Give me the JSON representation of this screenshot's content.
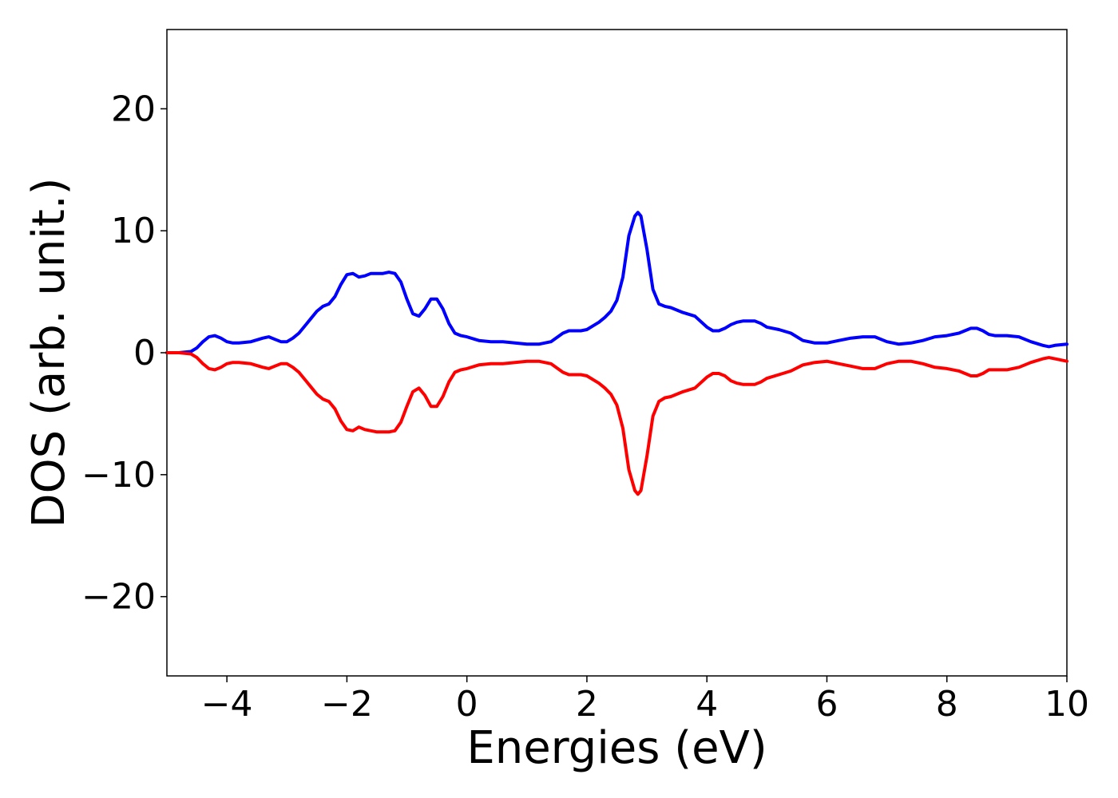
{
  "chart_data": {
    "type": "line",
    "title": "",
    "xlabel": "Energies (eV)",
    "ylabel": "DOS (arb. unit.)",
    "xlim": [
      -5,
      10
    ],
    "ylim": [
      -26.5,
      26.5
    ],
    "grid": false,
    "legend": "none",
    "x_ticks": [
      -4,
      -2,
      0,
      2,
      4,
      6,
      8,
      10
    ],
    "x_tick_labels": [
      "−4",
      "−2",
      "0",
      "2",
      "4",
      "6",
      "8",
      "10"
    ],
    "y_ticks": [
      20,
      10,
      0,
      -10,
      -20
    ],
    "y_tick_labels": [
      "20",
      "10",
      "0",
      "−10",
      "−20"
    ],
    "series": [
      {
        "color": "#0000ff",
        "x": [
          -5.0,
          -4.8,
          -4.6,
          -4.5,
          -4.4,
          -4.3,
          -4.2,
          -4.1,
          -4.0,
          -3.9,
          -3.8,
          -3.6,
          -3.4,
          -3.3,
          -3.2,
          -3.1,
          -3.0,
          -2.9,
          -2.8,
          -2.7,
          -2.6,
          -2.5,
          -2.4,
          -2.3,
          -2.2,
          -2.1,
          -2.0,
          -1.9,
          -1.8,
          -1.7,
          -1.6,
          -1.5,
          -1.4,
          -1.3,
          -1.2,
          -1.1,
          -1.0,
          -0.9,
          -0.8,
          -0.7,
          -0.6,
          -0.5,
          -0.4,
          -0.3,
          -0.2,
          -0.1,
          0.0,
          0.2,
          0.4,
          0.6,
          0.8,
          1.0,
          1.2,
          1.4,
          1.6,
          1.7,
          1.8,
          1.9,
          2.0,
          2.1,
          2.2,
          2.3,
          2.4,
          2.5,
          2.6,
          2.7,
          2.8,
          2.85,
          2.9,
          3.0,
          3.1,
          3.2,
          3.3,
          3.4,
          3.6,
          3.8,
          4.0,
          4.1,
          4.2,
          4.3,
          4.4,
          4.5,
          4.6,
          4.7,
          4.8,
          4.9,
          5.0,
          5.2,
          5.4,
          5.6,
          5.8,
          6.0,
          6.2,
          6.4,
          6.6,
          6.8,
          7.0,
          7.2,
          7.4,
          7.6,
          7.8,
          8.0,
          8.2,
          8.4,
          8.5,
          8.6,
          8.7,
          8.8,
          9.0,
          9.2,
          9.4,
          9.6,
          9.7,
          9.8,
          10.0
        ],
        "y": [
          0.0,
          0.0,
          0.1,
          0.4,
          0.9,
          1.3,
          1.4,
          1.2,
          0.9,
          0.8,
          0.8,
          0.9,
          1.2,
          1.3,
          1.1,
          0.9,
          0.9,
          1.2,
          1.6,
          2.2,
          2.8,
          3.4,
          3.8,
          4.0,
          4.6,
          5.6,
          6.4,
          6.5,
          6.2,
          6.3,
          6.5,
          6.5,
          6.5,
          6.6,
          6.5,
          5.8,
          4.4,
          3.2,
          3.0,
          3.6,
          4.4,
          4.4,
          3.6,
          2.4,
          1.6,
          1.4,
          1.3,
          1.0,
          0.9,
          0.9,
          0.8,
          0.7,
          0.7,
          0.9,
          1.6,
          1.8,
          1.8,
          1.8,
          1.9,
          2.2,
          2.5,
          2.9,
          3.4,
          4.3,
          6.2,
          9.6,
          11.2,
          11.5,
          11.2,
          8.5,
          5.2,
          4.0,
          3.8,
          3.7,
          3.3,
          3.0,
          2.1,
          1.8,
          1.8,
          2.0,
          2.3,
          2.5,
          2.6,
          2.6,
          2.6,
          2.4,
          2.1,
          1.9,
          1.6,
          1.0,
          0.8,
          0.8,
          1.0,
          1.2,
          1.3,
          1.3,
          0.9,
          0.7,
          0.8,
          1.0,
          1.3,
          1.4,
          1.6,
          2.0,
          2.0,
          1.8,
          1.5,
          1.4,
          1.4,
          1.3,
          0.9,
          0.6,
          0.5,
          0.6,
          0.7
        ]
      },
      {
        "color": "#ff0000",
        "x": [
          -5.0,
          -4.8,
          -4.6,
          -4.5,
          -4.4,
          -4.3,
          -4.2,
          -4.1,
          -4.0,
          -3.9,
          -3.8,
          -3.6,
          -3.4,
          -3.3,
          -3.2,
          -3.1,
          -3.0,
          -2.9,
          -2.8,
          -2.7,
          -2.6,
          -2.5,
          -2.4,
          -2.3,
          -2.2,
          -2.1,
          -2.0,
          -1.9,
          -1.8,
          -1.7,
          -1.6,
          -1.5,
          -1.4,
          -1.3,
          -1.2,
          -1.1,
          -1.0,
          -0.9,
          -0.8,
          -0.7,
          -0.6,
          -0.5,
          -0.4,
          -0.3,
          -0.2,
          -0.1,
          0.0,
          0.2,
          0.4,
          0.6,
          0.8,
          1.0,
          1.2,
          1.4,
          1.6,
          1.7,
          1.8,
          1.9,
          2.0,
          2.1,
          2.2,
          2.3,
          2.4,
          2.5,
          2.6,
          2.7,
          2.8,
          2.85,
          2.9,
          3.0,
          3.1,
          3.2,
          3.3,
          3.4,
          3.6,
          3.8,
          4.0,
          4.1,
          4.2,
          4.3,
          4.4,
          4.5,
          4.6,
          4.7,
          4.8,
          4.9,
          5.0,
          5.2,
          5.4,
          5.6,
          5.8,
          6.0,
          6.2,
          6.4,
          6.6,
          6.8,
          7.0,
          7.2,
          7.4,
          7.6,
          7.8,
          8.0,
          8.2,
          8.4,
          8.5,
          8.6,
          8.7,
          8.8,
          9.0,
          9.2,
          9.4,
          9.6,
          9.7,
          9.8,
          10.0
        ],
        "y": [
          0.0,
          0.0,
          -0.1,
          -0.4,
          -0.9,
          -1.3,
          -1.4,
          -1.2,
          -0.9,
          -0.8,
          -0.8,
          -0.9,
          -1.2,
          -1.3,
          -1.1,
          -0.9,
          -0.9,
          -1.2,
          -1.6,
          -2.2,
          -2.8,
          -3.4,
          -3.8,
          -4.0,
          -4.6,
          -5.6,
          -6.3,
          -6.4,
          -6.1,
          -6.3,
          -6.4,
          -6.5,
          -6.5,
          -6.5,
          -6.4,
          -5.7,
          -4.4,
          -3.2,
          -2.9,
          -3.5,
          -4.4,
          -4.4,
          -3.6,
          -2.4,
          -1.6,
          -1.4,
          -1.3,
          -1.0,
          -0.9,
          -0.9,
          -0.8,
          -0.7,
          -0.7,
          -0.9,
          -1.6,
          -1.8,
          -1.8,
          -1.8,
          -1.9,
          -2.2,
          -2.5,
          -2.9,
          -3.4,
          -4.3,
          -6.2,
          -9.6,
          -11.3,
          -11.6,
          -11.3,
          -8.5,
          -5.2,
          -4.0,
          -3.7,
          -3.6,
          -3.2,
          -2.9,
          -2.0,
          -1.7,
          -1.7,
          -1.9,
          -2.3,
          -2.5,
          -2.6,
          -2.6,
          -2.6,
          -2.4,
          -2.1,
          -1.8,
          -1.5,
          -1.0,
          -0.8,
          -0.7,
          -0.9,
          -1.1,
          -1.3,
          -1.3,
          -0.9,
          -0.7,
          -0.7,
          -0.9,
          -1.2,
          -1.3,
          -1.5,
          -1.9,
          -1.9,
          -1.7,
          -1.4,
          -1.4,
          -1.4,
          -1.2,
          -0.8,
          -0.5,
          -0.4,
          -0.5,
          -0.7
        ]
      }
    ]
  }
}
